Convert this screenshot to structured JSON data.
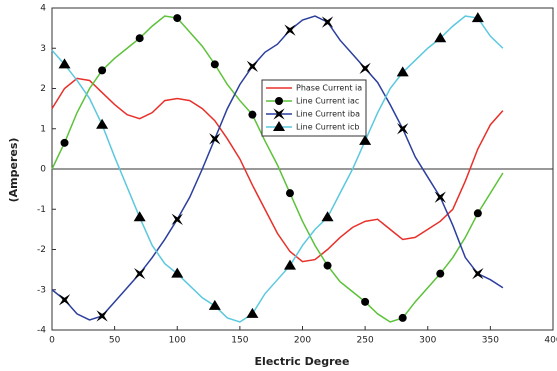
{
  "chart_data": {
    "type": "line",
    "xlabel": "Electric Degree",
    "ylabel": "(Amperes)",
    "x": [
      0,
      10,
      20,
      30,
      40,
      50,
      60,
      70,
      80,
      90,
      100,
      110,
      120,
      130,
      140,
      150,
      160,
      170,
      180,
      190,
      200,
      210,
      220,
      230,
      240,
      250,
      260,
      270,
      280,
      290,
      300,
      310,
      320,
      330,
      340,
      350,
      360
    ],
    "series": [
      {
        "name": "Phase Current ia",
        "color": "#e8302a",
        "marker": "none",
        "values": [
          1.5,
          2.0,
          2.25,
          2.2,
          1.9,
          1.6,
          1.35,
          1.25,
          1.4,
          1.7,
          1.75,
          1.7,
          1.5,
          1.2,
          0.75,
          0.25,
          -0.4,
          -1.0,
          -1.6,
          -2.05,
          -2.3,
          -2.25,
          -2.0,
          -1.7,
          -1.45,
          -1.3,
          -1.25,
          -1.5,
          -1.75,
          -1.7,
          -1.5,
          -1.3,
          -1.0,
          -0.3,
          0.5,
          1.1,
          1.45
        ]
      },
      {
        "name": "Line Current iac",
        "color": "#5cc23a",
        "marker": "circle",
        "values": [
          0,
          0.65,
          1.4,
          2.0,
          2.45,
          2.75,
          3.0,
          3.25,
          3.55,
          3.8,
          3.75,
          3.4,
          3.05,
          2.6,
          2.1,
          1.7,
          1.35,
          0.7,
          0.1,
          -0.6,
          -1.3,
          -1.9,
          -2.4,
          -2.8,
          -3.05,
          -3.3,
          -3.6,
          -3.8,
          -3.7,
          -3.3,
          -2.95,
          -2.6,
          -2.2,
          -1.7,
          -1.1,
          -0.6,
          -0.1
        ]
      },
      {
        "name": "Line Current iba",
        "color": "#2c3f9e",
        "marker": "star",
        "values": [
          -3.0,
          -3.25,
          -3.6,
          -3.75,
          -3.65,
          -3.3,
          -2.95,
          -2.6,
          -2.2,
          -1.75,
          -1.25,
          -0.7,
          0.0,
          0.75,
          1.5,
          2.1,
          2.55,
          2.9,
          3.1,
          3.45,
          3.7,
          3.8,
          3.65,
          3.2,
          2.85,
          2.5,
          2.15,
          1.6,
          1.0,
          0.3,
          -0.2,
          -0.7,
          -1.4,
          -2.2,
          -2.6,
          -2.75,
          -2.95
        ]
      },
      {
        "name": "Line Current icb",
        "color": "#5cc8df",
        "marker": "triangle",
        "values": [
          2.95,
          2.6,
          2.2,
          1.75,
          1.1,
          0.3,
          -0.45,
          -1.2,
          -1.9,
          -2.35,
          -2.6,
          -2.9,
          -3.2,
          -3.4,
          -3.7,
          -3.8,
          -3.6,
          -3.1,
          -2.75,
          -2.4,
          -1.9,
          -1.5,
          -1.2,
          -0.6,
          0.0,
          0.7,
          1.4,
          2.0,
          2.4,
          2.7,
          3.0,
          3.25,
          3.55,
          3.8,
          3.75,
          3.3,
          3.0
        ]
      }
    ],
    "xlim": [
      0,
      400
    ],
    "xticks": [
      0,
      50,
      100,
      150,
      200,
      250,
      300,
      350,
      400
    ],
    "ylim": [
      -4,
      4
    ],
    "yticks": [
      -4,
      -3,
      -2,
      -1,
      0,
      1,
      2,
      3,
      4
    ],
    "legend": "upper center"
  }
}
